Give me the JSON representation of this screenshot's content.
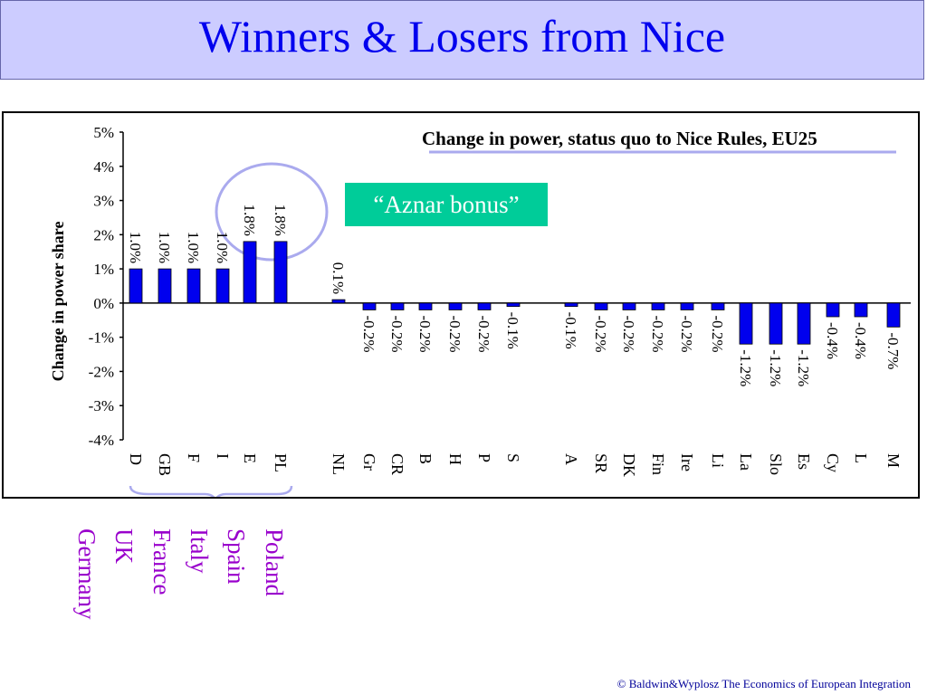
{
  "slide": {
    "title": "Winners & Losers from Nice",
    "callout": "“Aznar bonus”",
    "footer": "© Baldwin&Wyplosz The Economics of European Integration",
    "country_names": [
      "Poland",
      "Spain",
      "Italy",
      "France",
      "UK",
      "Germany"
    ]
  },
  "colors": {
    "title_band": "#ccccff",
    "title_text": "#0000ee",
    "bar": "#0000ee",
    "callout_bg": "#00cc99",
    "highlight_ring": "#aaaaee",
    "country_names": "#9900cc"
  },
  "chart_data": {
    "type": "bar",
    "title": "Change in power, status quo to Nice Rules, EU25",
    "ylabel": "Change in power share",
    "xlabel": "",
    "ylim": [
      -4,
      5
    ],
    "yticks": [
      5,
      4,
      3,
      2,
      1,
      0,
      -1,
      -2,
      -3,
      -4
    ],
    "ytick_labels": [
      "5%",
      "4%",
      "3%",
      "2%",
      "1%",
      "0%",
      "-1%",
      "-2%",
      "-3%",
      "-4%"
    ],
    "categories": [
      "D",
      "GB",
      "F",
      "I",
      "E",
      "PL",
      "NL",
      "Gr",
      "CR",
      "B",
      "H",
      "P",
      "S",
      "A",
      "SR",
      "DK",
      "Fin",
      "Ire",
      "Li",
      "La",
      "Slo",
      "Es",
      "Cy",
      "L",
      "M"
    ],
    "values": [
      1.0,
      1.0,
      1.0,
      1.0,
      1.8,
      1.8,
      0.1,
      -0.2,
      -0.2,
      -0.2,
      -0.2,
      -0.2,
      -0.1,
      -0.1,
      -0.2,
      -0.2,
      -0.2,
      -0.2,
      -0.2,
      -1.2,
      -1.2,
      -1.2,
      -0.4,
      -0.4,
      -0.7
    ],
    "labels": [
      "1.0%",
      "1.0%",
      "1.0%",
      "1.0%",
      "1.8%",
      "1.8%",
      "0.1%",
      "-0.2%",
      "-0.2%",
      "-0.2%",
      "-0.2%",
      "-0.2%",
      "-0.1%",
      "-0.1%",
      "-0.2%",
      "-0.2%",
      "-0.2%",
      "-0.2%",
      "-0.2%",
      "-1.2%",
      "-1.2%",
      "-1.2%",
      "-0.4%",
      "-0.4%",
      "-0.7%"
    ],
    "grid": false,
    "legend": "none"
  }
}
